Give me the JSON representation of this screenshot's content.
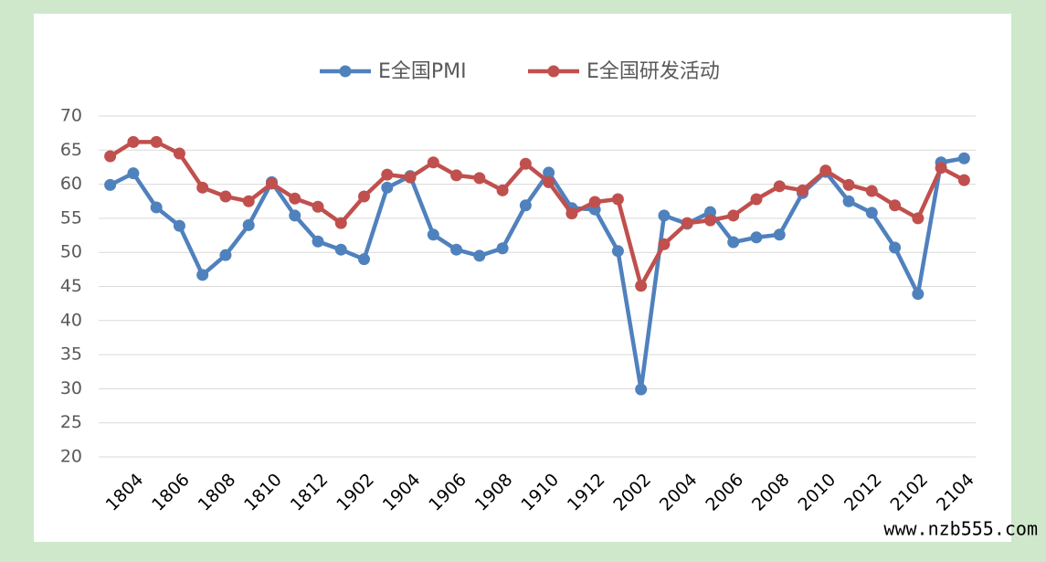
{
  "chart_data": {
    "type": "line",
    "categories": [
      null,
      "1804",
      null,
      "1806",
      null,
      "1808",
      null,
      "1810",
      null,
      "1812",
      null,
      "1902",
      null,
      "1904",
      null,
      "1906",
      null,
      "1908",
      null,
      "1910",
      null,
      "1912",
      null,
      "2002",
      null,
      "2004",
      null,
      "2006",
      null,
      "2008",
      null,
      "2010",
      null,
      "2012",
      null,
      "2102",
      null,
      "2104"
    ],
    "series": [
      {
        "name": "E全国PMI",
        "color": "#4f81bd",
        "values": [
          59.9,
          61.6,
          56.6,
          53.9,
          46.7,
          49.6,
          54.0,
          60.3,
          55.4,
          51.6,
          50.4,
          49.0,
          59.5,
          61.2,
          52.6,
          50.4,
          49.5,
          50.6,
          56.9,
          61.7,
          56.5,
          56.3,
          50.2,
          29.9,
          55.4,
          54.2,
          55.9,
          51.5,
          52.2,
          52.6,
          58.7,
          61.8,
          57.5,
          55.8,
          50.7,
          43.9,
          63.2,
          63.8
        ]
      },
      {
        "name": "E全国研发活动",
        "color": "#c0504d",
        "values": [
          64.1,
          66.2,
          66.2,
          64.5,
          59.5,
          58.2,
          57.5,
          60.1,
          57.9,
          56.7,
          54.3,
          58.2,
          61.4,
          61.0,
          63.2,
          61.3,
          60.9,
          59.1,
          63.0,
          60.3,
          55.7,
          57.4,
          57.8,
          45.1,
          51.2,
          54.3,
          54.7,
          55.4,
          57.8,
          59.7,
          59.1,
          62.0,
          59.9,
          59.0,
          56.9,
          55.0,
          62.4,
          60.6
        ]
      }
    ],
    "ylim": [
      20,
      70
    ],
    "yticks": [
      20,
      25,
      30,
      35,
      40,
      45,
      50,
      55,
      60,
      65,
      70
    ],
    "grid": true,
    "legend": "top",
    "watermark": "www.nzb555.com"
  }
}
